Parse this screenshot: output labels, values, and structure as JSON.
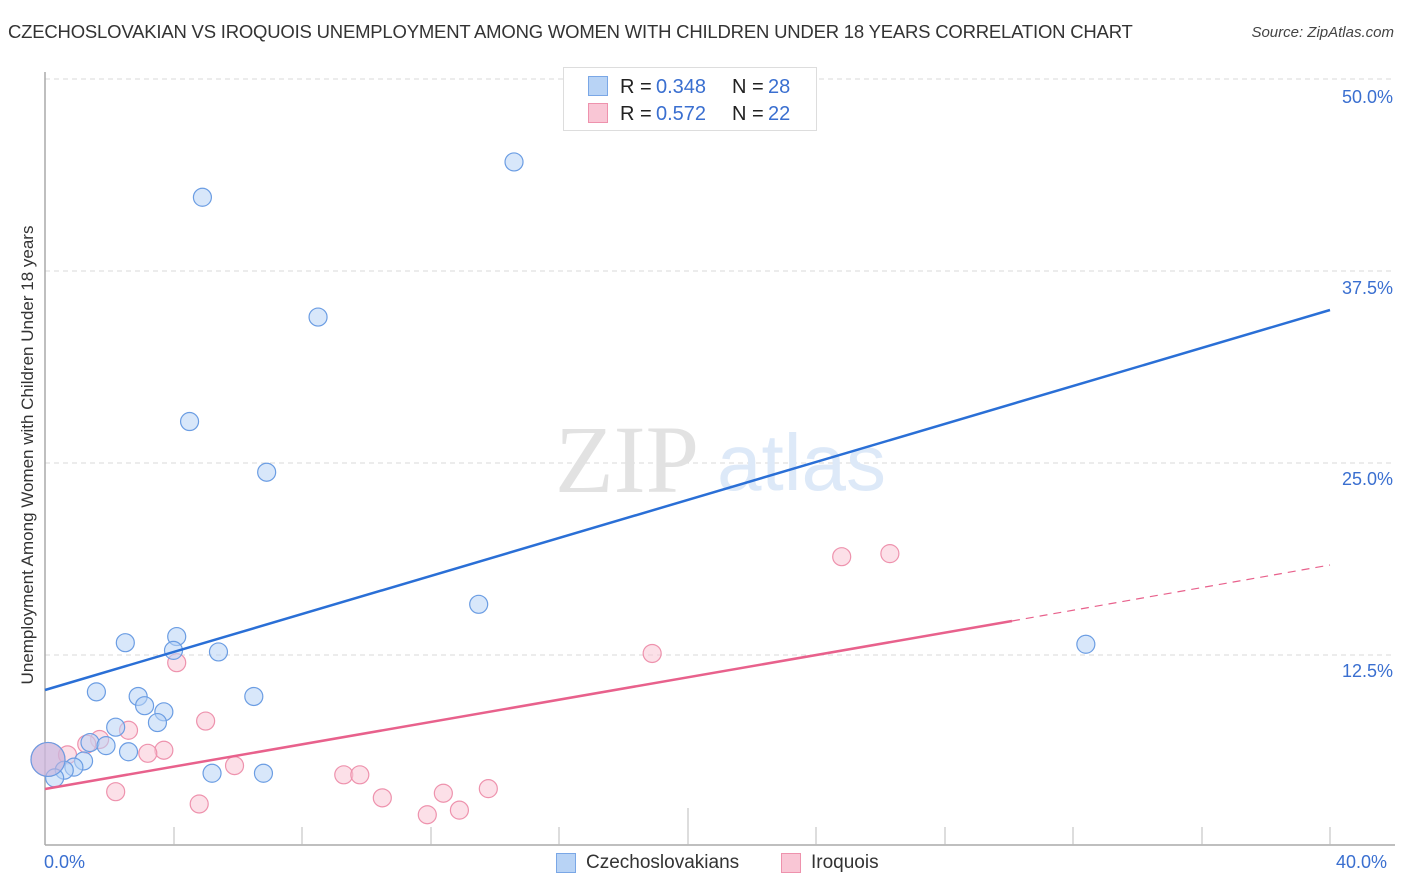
{
  "header": {
    "title": "CZECHOSLOVAKIAN VS IROQUOIS UNEMPLOYMENT AMONG WOMEN WITH CHILDREN UNDER 18 YEARS CORRELATION CHART",
    "source": "Source: ZipAtlas.com"
  },
  "legend": {
    "rows": [
      {
        "series": "Czechoslovakians",
        "r_label": "R =",
        "r_value": "0.348",
        "n_label": "N =",
        "n_value": "28",
        "fill": "#b8d3f5",
        "stroke": "#7aa7e6"
      },
      {
        "series": "Iroquois",
        "r_label": "R =",
        "r_value": "0.572",
        "n_label": "N =",
        "n_value": "22",
        "fill": "#f9c6d5",
        "stroke": "#ee92ad"
      }
    ]
  },
  "axes": {
    "y_label": "Unemployment Among Women with Children Under 18 years",
    "y_ticks": [
      "50.0%",
      "37.5%",
      "25.0%",
      "12.5%"
    ],
    "x_ticks": [
      "0.0%",
      "40.0%"
    ]
  },
  "bottom_legend": {
    "items": [
      {
        "label": "Czechoslovakians",
        "fill": "#b8d3f5",
        "stroke": "#7aa7e6"
      },
      {
        "label": "Iroquois",
        "fill": "#f9c6d5",
        "stroke": "#ee92ad"
      }
    ]
  },
  "watermark": {
    "zip": "ZIP",
    "atlas": "atlas"
  },
  "colors": {
    "blue_line": "#2a6fd6",
    "pink_line": "#e8618c",
    "tick_text": "#3a6fd0",
    "grid": "#d8d8d8",
    "axis": "#aaaaaa"
  },
  "chart_data": {
    "type": "scatter",
    "title": "CZECHOSLOVAKIAN VS IROQUOIS UNEMPLOYMENT AMONG WOMEN WITH CHILDREN UNDER 18 YEARS CORRELATION CHART",
    "xlabel": "",
    "ylabel": "Unemployment Among Women with Children Under 18 years",
    "xlim": [
      0,
      40
    ],
    "ylim": [
      0,
      52
    ],
    "x_tick_labels": [
      "0.0%",
      "40.0%"
    ],
    "y_tick_labels": [
      "12.5%",
      "25.0%",
      "37.5%",
      "50.0%"
    ],
    "y_ticks": [
      12.5,
      25.0,
      37.5,
      50.0
    ],
    "grid": true,
    "legend_position": "top-center",
    "series": [
      {
        "name": "Czechoslovakians",
        "R": 0.348,
        "N": 28,
        "color": "#7aa7e6",
        "points": [
          [
            14.6,
            44.6
          ],
          [
            4.9,
            42.3
          ],
          [
            8.5,
            34.5
          ],
          [
            4.5,
            27.7
          ],
          [
            6.9,
            24.4
          ],
          [
            13.5,
            15.8
          ],
          [
            32.4,
            13.2
          ],
          [
            2.5,
            13.3
          ],
          [
            4.1,
            13.7
          ],
          [
            4.0,
            12.8
          ],
          [
            5.4,
            12.7
          ],
          [
            1.6,
            10.1
          ],
          [
            2.9,
            9.8
          ],
          [
            6.5,
            9.8
          ],
          [
            3.1,
            9.2
          ],
          [
            3.7,
            8.8
          ],
          [
            3.5,
            8.1
          ],
          [
            2.2,
            7.8
          ],
          [
            1.4,
            6.8
          ],
          [
            1.9,
            6.6
          ],
          [
            2.6,
            6.2
          ],
          [
            5.2,
            4.8
          ],
          [
            6.8,
            4.8
          ],
          [
            1.2,
            5.6
          ],
          [
            0.9,
            5.2
          ],
          [
            0.6,
            5.0
          ],
          [
            0.3,
            4.5
          ],
          [
            0.1,
            5.7
          ]
        ],
        "trend": {
          "x": [
            0,
            40
          ],
          "y": [
            10.2,
            35.0
          ]
        }
      },
      {
        "name": "Iroquois",
        "R": 0.572,
        "N": 22,
        "color": "#ee92ad",
        "points": [
          [
            26.3,
            19.1
          ],
          [
            24.8,
            18.9
          ],
          [
            18.9,
            12.6
          ],
          [
            4.1,
            12.0
          ],
          [
            5.0,
            8.2
          ],
          [
            2.6,
            7.6
          ],
          [
            1.7,
            7.0
          ],
          [
            1.3,
            6.7
          ],
          [
            3.7,
            6.3
          ],
          [
            3.2,
            6.1
          ],
          [
            0.7,
            6.0
          ],
          [
            5.9,
            5.3
          ],
          [
            9.3,
            4.7
          ],
          [
            9.8,
            4.7
          ],
          [
            13.8,
            3.8
          ],
          [
            12.4,
            3.5
          ],
          [
            2.2,
            3.6
          ],
          [
            10.5,
            3.2
          ],
          [
            4.8,
            2.8
          ],
          [
            12.9,
            2.4
          ],
          [
            11.9,
            2.1
          ],
          [
            0.1,
            5.7
          ]
        ],
        "trend": {
          "x": [
            0,
            30.1,
            40
          ],
          "y": [
            3.8,
            14.7,
            18.4
          ],
          "dashed_from_x": 30.1
        }
      }
    ]
  }
}
